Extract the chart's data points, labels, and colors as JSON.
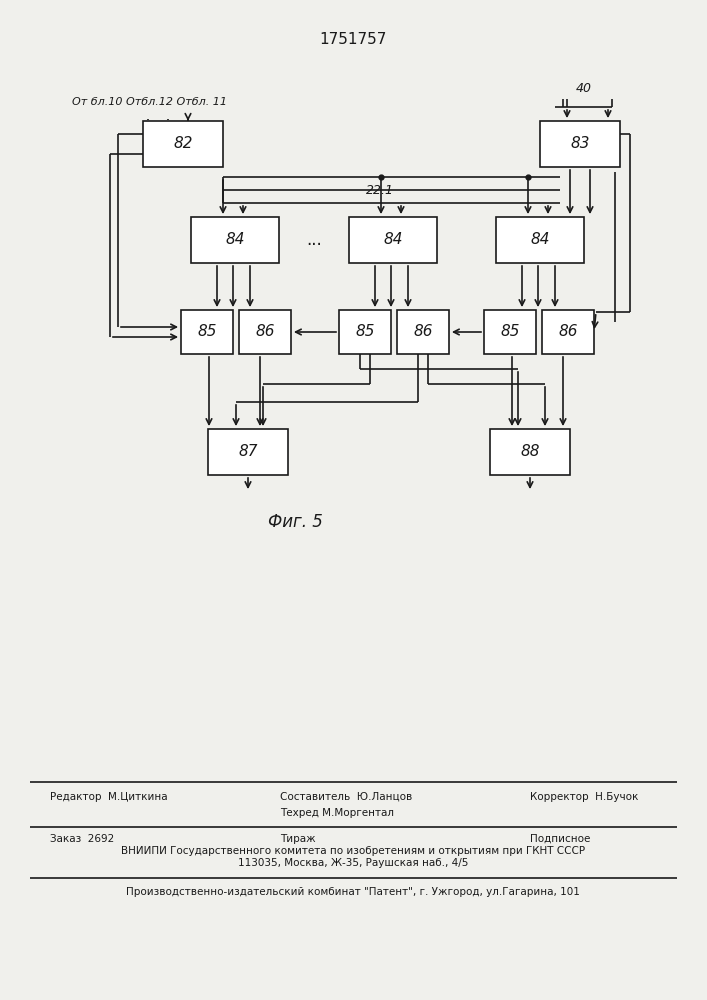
{
  "title": "1751757",
  "fig_label": "Фиг. 5",
  "background_color": "#f0f0ec",
  "box_color": "#ffffff",
  "line_color": "#1a1a1a",
  "text_color": "#1a1a1a",
  "label_from": "От бл.10 Отбл.12 Отбл. 11",
  "label_40": "40",
  "label_22": "22.1",
  "footer_line1_left": "Редактор  М.Циткина",
  "footer_line1_c1": "Составитель  Ю.Ланцов",
  "footer_line1_c2": "Техред М.Моргентал",
  "footer_line1_right": "Корректор  Н.Бучок",
  "footer_line2_left": "Заказ  2692",
  "footer_line2_center": "Тираж",
  "footer_line2_right": "Подписное",
  "footer_line3": "ВНИИПИ Государственного комитета по изобретениям и открытиям при ГКНТ СССР",
  "footer_line4": "113035, Москва, Ж-35, Раушская наб., 4/5",
  "footer_line5": "Производственно-издательский комбинат \"Патент\", г. Ужгород, ул.Гагарина, 101"
}
